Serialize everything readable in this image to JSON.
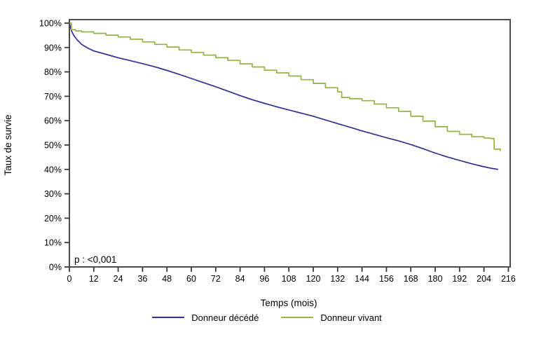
{
  "chart_data": {
    "type": "line",
    "title": "",
    "xlabel": "Temps (mois)",
    "ylabel": "Taux de survie",
    "annotation": "p : <0,001",
    "xlim": [
      0,
      216
    ],
    "ylim": [
      0,
      100
    ],
    "grid": false,
    "legend_position": "bottom",
    "x_ticks": [
      0,
      12,
      24,
      36,
      48,
      60,
      72,
      84,
      96,
      108,
      120,
      132,
      144,
      156,
      168,
      180,
      192,
      204,
      216
    ],
    "x_tick_labels": [
      "0",
      "12",
      "24",
      "36",
      "48",
      "60",
      "72",
      "84",
      "96",
      "108",
      "120",
      "132",
      "144",
      "156",
      "168",
      "180",
      "192",
      "204",
      "216"
    ],
    "y_ticks": [
      0,
      10,
      20,
      30,
      40,
      50,
      60,
      70,
      80,
      90,
      100
    ],
    "y_tick_labels": [
      "0%",
      "10%",
      "20%",
      "30%",
      "40%",
      "50%",
      "60%",
      "70%",
      "80%",
      "90%",
      "100%"
    ],
    "frame_color": "#4d4d4d",
    "series": [
      {
        "name": "Donneur décédé",
        "color": "#2f3092",
        "interpolation": "linear",
        "x": [
          0,
          0.8,
          1.5,
          2.5,
          4,
          6,
          9,
          12,
          18,
          24,
          30,
          36,
          42,
          48,
          54,
          60,
          66,
          72,
          78,
          84,
          90,
          96,
          102,
          108,
          114,
          120,
          126,
          132,
          138,
          144,
          150,
          156,
          162,
          168,
          174,
          180,
          186,
          192,
          198,
          204,
          208,
          211
        ],
        "y": [
          100,
          97.5,
          96,
          94.5,
          93,
          91.3,
          89.8,
          88.6,
          87.2,
          85.8,
          84.6,
          83.4,
          82.1,
          80.6,
          79,
          77.3,
          75.6,
          73.9,
          72.1,
          70.3,
          68.6,
          67.1,
          65.7,
          64.4,
          63.1,
          61.8,
          60.3,
          58.8,
          57.3,
          55.8,
          54.4,
          53,
          51.7,
          50.2,
          48.5,
          46.7,
          45.1,
          43.7,
          42.3,
          41.1,
          40.4,
          40
        ]
      },
      {
        "name": "Donneur vivant",
        "color": "#95b342",
        "interpolation": "step-after",
        "x": [
          0,
          1,
          3,
          6,
          12,
          18,
          24,
          30,
          36,
          42,
          48,
          54,
          60,
          66,
          72,
          78,
          84,
          90,
          96,
          102,
          108,
          114,
          120,
          126,
          132,
          134,
          138,
          144,
          150,
          156,
          162,
          168,
          174,
          180,
          186,
          192,
          198,
          204,
          207,
          209,
          212
        ],
        "y": [
          100,
          97.3,
          96.8,
          96.4,
          95.8,
          95.1,
          94.3,
          93.4,
          92.3,
          91.3,
          90.2,
          89,
          88,
          86.9,
          85.8,
          84.7,
          83.3,
          82,
          80.7,
          79.6,
          78.3,
          76.8,
          75.3,
          73.5,
          71.8,
          69.5,
          69,
          68.2,
          66.8,
          65.3,
          63.8,
          61.8,
          59.8,
          57.5,
          55.6,
          54.4,
          53.4,
          52.9,
          52.7,
          48.3,
          47.5
        ]
      }
    ]
  }
}
